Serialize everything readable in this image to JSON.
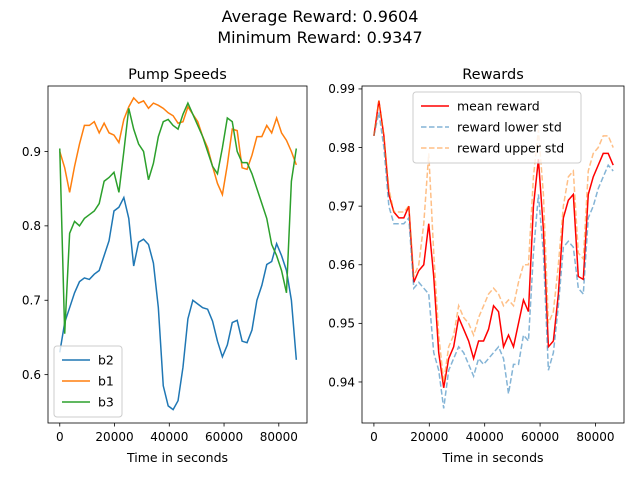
{
  "suptitle_lines": [
    "Average Reward: 0.9604",
    "Minimum Reward: 0.9347"
  ],
  "chart_data": [
    {
      "type": "line",
      "title": "Pump Speeds",
      "xlabel": "Time in seconds",
      "ylabel": "",
      "xlim": [
        -4300,
        90300
      ],
      "ylim": [
        0.535,
        0.988
      ],
      "xticks": [
        0,
        20000,
        40000,
        60000,
        80000
      ],
      "yticks": [
        0.6,
        0.7,
        0.8,
        0.9
      ],
      "legend_position": "lower-left",
      "x": [
        0,
        1800,
        3600,
        5400,
        7200,
        9000,
        10800,
        12600,
        14400,
        16200,
        18000,
        19800,
        21600,
        23400,
        25200,
        27000,
        28800,
        30600,
        32400,
        34200,
        36000,
        37800,
        39600,
        41400,
        43200,
        45000,
        46800,
        48600,
        50400,
        52200,
        54000,
        55800,
        57600,
        59400,
        61200,
        63000,
        64800,
        66600,
        68400,
        70200,
        72000,
        73800,
        75600,
        77400,
        79200,
        81000,
        82800,
        84600,
        86400
      ],
      "series": [
        {
          "name": "b2",
          "color": "#1f77b4",
          "values": [
            0.63,
            0.67,
            0.69,
            0.71,
            0.725,
            0.73,
            0.728,
            0.735,
            0.74,
            0.76,
            0.78,
            0.82,
            0.825,
            0.838,
            0.81,
            0.746,
            0.778,
            0.782,
            0.775,
            0.75,
            0.69,
            0.585,
            0.558,
            0.553,
            0.565,
            0.61,
            0.675,
            0.7,
            0.695,
            0.69,
            0.688,
            0.672,
            0.645,
            0.624,
            0.64,
            0.67,
            0.673,
            0.645,
            0.643,
            0.66,
            0.7,
            0.72,
            0.748,
            0.752,
            0.776,
            0.76,
            0.74,
            0.7,
            0.62
          ]
        },
        {
          "name": "b1",
          "color": "#ff7f0e",
          "values": [
            0.9,
            0.878,
            0.845,
            0.88,
            0.91,
            0.935,
            0.935,
            0.94,
            0.925,
            0.938,
            0.925,
            0.922,
            0.912,
            0.943,
            0.96,
            0.972,
            0.965,
            0.968,
            0.958,
            0.965,
            0.962,
            0.958,
            0.952,
            0.948,
            0.938,
            0.94,
            0.96,
            0.95,
            0.94,
            0.92,
            0.905,
            0.88,
            0.857,
            0.842,
            0.882,
            0.93,
            0.928,
            0.878,
            0.876,
            0.895,
            0.92,
            0.92,
            0.935,
            0.925,
            0.945,
            0.925,
            0.915,
            0.9,
            0.882
          ]
        },
        {
          "name": "b3",
          "color": "#2ca02c",
          "values": [
            0.904,
            0.655,
            0.79,
            0.806,
            0.8,
            0.81,
            0.815,
            0.82,
            0.83,
            0.86,
            0.865,
            0.872,
            0.845,
            0.9,
            0.958,
            0.93,
            0.91,
            0.9,
            0.862,
            0.884,
            0.92,
            0.94,
            0.943,
            0.935,
            0.93,
            0.95,
            0.965,
            0.95,
            0.935,
            0.92,
            0.9,
            0.88,
            0.87,
            0.905,
            0.945,
            0.94,
            0.9,
            0.885,
            0.885,
            0.87,
            0.85,
            0.83,
            0.81,
            0.775,
            0.76,
            0.74,
            0.71,
            0.86,
            0.904
          ]
        }
      ]
    },
    {
      "type": "line",
      "title": "Rewards",
      "xlabel": "Time in seconds",
      "ylabel": "",
      "xlim": [
        -4300,
        90300
      ],
      "ylim": [
        0.933,
        0.9905
      ],
      "xticks": [
        0,
        20000,
        40000,
        60000,
        80000
      ],
      "yticks": [
        0.94,
        0.95,
        0.96,
        0.97,
        0.98,
        0.99
      ],
      "legend_position": "top-center",
      "x": [
        0,
        1800,
        3600,
        5400,
        7200,
        9000,
        10800,
        12600,
        14400,
        16200,
        18000,
        19800,
        21600,
        23400,
        25200,
        27000,
        28800,
        30600,
        32400,
        34200,
        36000,
        37800,
        39600,
        41400,
        43200,
        45000,
        46800,
        48600,
        50400,
        52200,
        54000,
        55800,
        57600,
        59400,
        61200,
        63000,
        64800,
        66600,
        68400,
        70200,
        72000,
        73800,
        75600,
        77400,
        79200,
        81000,
        82800,
        84600,
        86400
      ],
      "series": [
        {
          "name": "mean reward",
          "color": "#ff0000",
          "dashed": false,
          "opacity": 1.0,
          "values": [
            0.982,
            0.988,
            0.982,
            0.972,
            0.969,
            0.968,
            0.968,
            0.97,
            0.957,
            0.959,
            0.96,
            0.967,
            0.958,
            0.945,
            0.939,
            0.944,
            0.946,
            0.951,
            0.949,
            0.947,
            0.944,
            0.947,
            0.947,
            0.949,
            0.953,
            0.952,
            0.946,
            0.948,
            0.946,
            0.95,
            0.954,
            0.952,
            0.97,
            0.978,
            0.966,
            0.946,
            0.947,
            0.955,
            0.968,
            0.971,
            0.972,
            0.958,
            0.9575,
            0.972,
            0.975,
            0.977,
            0.979,
            0.979,
            0.977
          ]
        },
        {
          "name": "reward lower std",
          "color": "#1f77b4",
          "dashed": true,
          "opacity": 0.55,
          "values": [
            0.982,
            0.986,
            0.98,
            0.97,
            0.967,
            0.967,
            0.967,
            0.968,
            0.956,
            0.957,
            0.956,
            0.955,
            0.945,
            0.942,
            0.9355,
            0.942,
            0.944,
            0.946,
            0.945,
            0.943,
            0.941,
            0.944,
            0.943,
            0.944,
            0.945,
            0.946,
            0.944,
            0.938,
            0.943,
            0.943,
            0.948,
            0.947,
            0.962,
            0.972,
            0.962,
            0.942,
            0.945,
            0.953,
            0.963,
            0.964,
            0.963,
            0.956,
            0.955,
            0.968,
            0.97,
            0.973,
            0.975,
            0.977,
            0.976
          ]
        },
        {
          "name": "reward upper std",
          "color": "#ff7f0e",
          "dashed": true,
          "opacity": 0.5,
          "values": [
            0.982,
            0.988,
            0.982,
            0.973,
            0.969,
            0.969,
            0.969,
            0.97,
            0.958,
            0.96,
            0.967,
            0.979,
            0.962,
            0.948,
            0.94,
            0.946,
            0.948,
            0.953,
            0.951,
            0.95,
            0.948,
            0.951,
            0.953,
            0.955,
            0.956,
            0.955,
            0.953,
            0.954,
            0.953,
            0.957,
            0.96,
            0.96,
            0.975,
            0.983,
            0.972,
            0.95,
            0.952,
            0.96,
            0.97,
            0.975,
            0.976,
            0.962,
            0.961,
            0.976,
            0.979,
            0.98,
            0.982,
            0.982,
            0.98
          ]
        }
      ]
    }
  ]
}
